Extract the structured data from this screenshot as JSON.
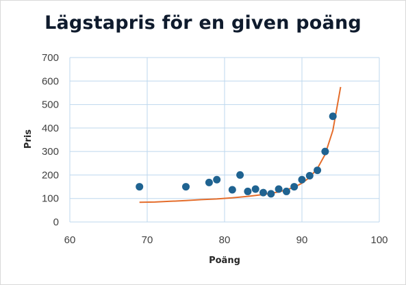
{
  "chart_data": {
    "type": "scatter",
    "title": "Lägstapris  för en given poäng",
    "xlabel": "Poäng",
    "ylabel": "Pris",
    "xlim": [
      60,
      100
    ],
    "ylim": [
      0,
      700
    ],
    "xticks": [
      60,
      70,
      80,
      90,
      100
    ],
    "yticks": [
      0,
      100,
      200,
      300,
      400,
      500,
      600,
      700
    ],
    "grid": true,
    "legend": "none",
    "colors": {
      "points": "#1f6391",
      "trend": "#e46c2a",
      "grid": "#bdd7ee"
    },
    "points": [
      {
        "x": 69,
        "y": 150
      },
      {
        "x": 75,
        "y": 150
      },
      {
        "x": 78,
        "y": 168
      },
      {
        "x": 79,
        "y": 180
      },
      {
        "x": 81,
        "y": 137
      },
      {
        "x": 82,
        "y": 200
      },
      {
        "x": 83,
        "y": 130
      },
      {
        "x": 84,
        "y": 140
      },
      {
        "x": 85,
        "y": 125
      },
      {
        "x": 86,
        "y": 120
      },
      {
        "x": 87,
        "y": 140
      },
      {
        "x": 88,
        "y": 130
      },
      {
        "x": 89,
        "y": 150
      },
      {
        "x": 90,
        "y": 180
      },
      {
        "x": 91,
        "y": 197
      },
      {
        "x": 92,
        "y": 220
      },
      {
        "x": 93,
        "y": 300
      },
      {
        "x": 94,
        "y": 450
      }
    ],
    "trend": [
      {
        "x": 69,
        "y": 84
      },
      {
        "x": 71,
        "y": 85
      },
      {
        "x": 73,
        "y": 88
      },
      {
        "x": 75,
        "y": 91
      },
      {
        "x": 77,
        "y": 95
      },
      {
        "x": 79,
        "y": 98
      },
      {
        "x": 81,
        "y": 103
      },
      {
        "x": 83,
        "y": 109
      },
      {
        "x": 85,
        "y": 117
      },
      {
        "x": 87,
        "y": 128
      },
      {
        "x": 88,
        "y": 137
      },
      {
        "x": 89,
        "y": 148
      },
      {
        "x": 90,
        "y": 165
      },
      {
        "x": 91,
        "y": 190
      },
      {
        "x": 92,
        "y": 228
      },
      {
        "x": 93,
        "y": 288
      },
      {
        "x": 94,
        "y": 390
      },
      {
        "x": 95,
        "y": 575
      }
    ]
  }
}
